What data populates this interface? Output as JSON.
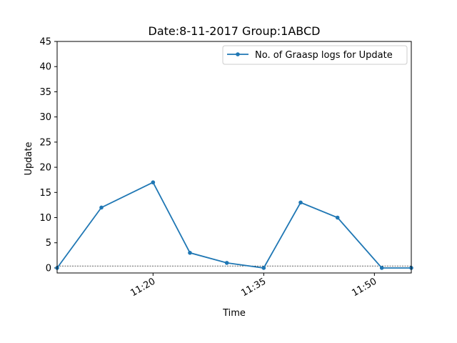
{
  "chart_data": {
    "type": "line",
    "title": "Date:8-11-2017  Group:1ABCD",
    "xlabel": "Time",
    "ylabel": "Update",
    "ylim": [
      -1,
      45
    ],
    "y_ticks": [
      0,
      5,
      10,
      15,
      20,
      25,
      30,
      35,
      40,
      45
    ],
    "xlim": [
      "11:07",
      "11:55"
    ],
    "x_ticks": [
      "11:20",
      "11:35",
      "11:50"
    ],
    "reference_line": {
      "y": 0.4,
      "style": "dashed"
    },
    "legend": {
      "placement": "top-right"
    },
    "grid": false,
    "series": [
      {
        "name": "No. of Graasp logs for Update",
        "color": "#1f77b4",
        "marker": "circle",
        "points": [
          {
            "x": "11:07",
            "y": 0
          },
          {
            "x": "11:13",
            "y": 12
          },
          {
            "x": "11:20",
            "y": 17
          },
          {
            "x": "11:25",
            "y": 3
          },
          {
            "x": "11:30",
            "y": 1
          },
          {
            "x": "11:35",
            "y": 0
          },
          {
            "x": "11:40",
            "y": 13
          },
          {
            "x": "11:45",
            "y": 10
          },
          {
            "x": "11:51",
            "y": 0
          },
          {
            "x": "11:55",
            "y": 0
          }
        ]
      }
    ]
  }
}
